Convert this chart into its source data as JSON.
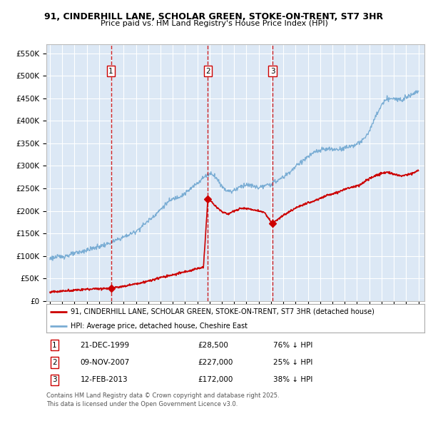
{
  "title1": "91, CINDERHILL LANE, SCHOLAR GREEN, STOKE-ON-TRENT, ST7 3HR",
  "title2": "Price paid vs. HM Land Registry's House Price Index (HPI)",
  "ylim": [
    0,
    570000
  ],
  "yticks": [
    0,
    50000,
    100000,
    150000,
    200000,
    250000,
    300000,
    350000,
    400000,
    450000,
    500000,
    550000
  ],
  "ytick_labels": [
    "£0",
    "£50K",
    "£100K",
    "£150K",
    "£200K",
    "£250K",
    "£300K",
    "£350K",
    "£400K",
    "£450K",
    "£500K",
    "£550K"
  ],
  "xlim_start": 1994.7,
  "xlim_end": 2025.5,
  "transactions": [
    {
      "num": 1,
      "date": "21-DEC-1999",
      "year": 1999.97,
      "price": 28500,
      "price_str": "£28,500",
      "pct": "76%",
      "dir": "↓"
    },
    {
      "num": 2,
      "date": "09-NOV-2007",
      "year": 2007.86,
      "price": 227000,
      "price_str": "£227,000",
      "pct": "25%",
      "dir": "↓"
    },
    {
      "num": 3,
      "date": "12-FEB-2013",
      "year": 2013.12,
      "price": 172000,
      "price_str": "£172,000",
      "pct": "38%",
      "dir": "↓"
    }
  ],
  "legend_line1": "91, CINDERHILL LANE, SCHOLAR GREEN, STOKE-ON-TRENT, ST7 3HR (detached house)",
  "legend_line2": "HPI: Average price, detached house, Cheshire East",
  "footer1": "Contains HM Land Registry data © Crown copyright and database right 2025.",
  "footer2": "This data is licensed under the Open Government Licence v3.0.",
  "plot_bg": "#dce8f5",
  "red_color": "#cc0000",
  "blue_color": "#7aadd4",
  "grid_color": "#ffffff",
  "hpi_years": [
    1995.0,
    1995.25,
    1995.5,
    1995.75,
    1996.0,
    1996.25,
    1996.5,
    1996.75,
    1997.0,
    1997.25,
    1997.5,
    1997.75,
    1998.0,
    1998.25,
    1998.5,
    1998.75,
    1999.0,
    1999.25,
    1999.5,
    1999.75,
    2000.0,
    2000.25,
    2000.5,
    2000.75,
    2001.0,
    2001.25,
    2001.5,
    2001.75,
    2002.0,
    2002.25,
    2002.5,
    2002.75,
    2003.0,
    2003.25,
    2003.5,
    2003.75,
    2004.0,
    2004.25,
    2004.5,
    2004.75,
    2005.0,
    2005.25,
    2005.5,
    2005.75,
    2006.0,
    2006.25,
    2006.5,
    2006.75,
    2007.0,
    2007.25,
    2007.5,
    2007.75,
    2008.0,
    2008.25,
    2008.5,
    2008.75,
    2009.0,
    2009.25,
    2009.5,
    2009.75,
    2010.0,
    2010.25,
    2010.5,
    2010.75,
    2011.0,
    2011.25,
    2011.5,
    2011.75,
    2012.0,
    2012.25,
    2012.5,
    2012.75,
    2013.0,
    2013.25,
    2013.5,
    2013.75,
    2014.0,
    2014.25,
    2014.5,
    2014.75,
    2015.0,
    2015.25,
    2015.5,
    2015.75,
    2016.0,
    2016.25,
    2016.5,
    2016.75,
    2017.0,
    2017.25,
    2017.5,
    2017.75,
    2018.0,
    2018.25,
    2018.5,
    2018.75,
    2019.0,
    2019.25,
    2019.5,
    2019.75,
    2020.0,
    2020.25,
    2020.5,
    2020.75,
    2021.0,
    2021.25,
    2021.5,
    2021.75,
    2022.0,
    2022.25,
    2022.5,
    2022.75,
    2023.0,
    2023.25,
    2023.5,
    2023.75,
    2024.0,
    2024.25,
    2024.5,
    2024.75,
    2025.0
  ],
  "hpi_values": [
    95000,
    96000,
    97000,
    98000,
    99000,
    100000,
    101500,
    103000,
    105000,
    107000,
    109000,
    111000,
    113000,
    115000,
    117000,
    119000,
    121000,
    123000,
    125000,
    127000,
    130000,
    133000,
    136000,
    139000,
    142000,
    145000,
    148000,
    151000,
    155000,
    160000,
    166000,
    172000,
    178000,
    184000,
    190000,
    196000,
    203000,
    210000,
    217000,
    222000,
    226000,
    229000,
    232000,
    235000,
    239000,
    244000,
    250000,
    256000,
    262000,
    268000,
    274000,
    279000,
    283000,
    282000,
    275000,
    265000,
    255000,
    248000,
    245000,
    243000,
    246000,
    250000,
    254000,
    257000,
    258000,
    257000,
    255000,
    253000,
    252000,
    253000,
    255000,
    257000,
    260000,
    263000,
    267000,
    271000,
    275000,
    280000,
    286000,
    292000,
    298000,
    304000,
    310000,
    315000,
    320000,
    325000,
    329000,
    332000,
    334000,
    336000,
    337000,
    337000,
    336000,
    336000,
    337000,
    338000,
    340000,
    342000,
    344000,
    346000,
    348000,
    352000,
    358000,
    366000,
    378000,
    392000,
    408000,
    422000,
    435000,
    443000,
    448000,
    450000,
    448000,
    447000,
    448000,
    450000,
    453000,
    456000,
    460000,
    463000,
    466000
  ],
  "prop_years": [
    1995.0,
    1995.5,
    1996.0,
    1996.5,
    1997.0,
    1997.5,
    1998.0,
    1998.5,
    1999.0,
    1999.5,
    1999.97,
    2000.3,
    2001.0,
    2002.0,
    2003.0,
    2004.0,
    2005.0,
    2006.0,
    2006.5,
    2007.0,
    2007.5,
    2007.86,
    2007.88,
    2008.1,
    2008.5,
    2009.0,
    2009.5,
    2010.0,
    2010.5,
    2011.0,
    2011.5,
    2012.0,
    2012.5,
    2013.0,
    2013.12,
    2013.5,
    2014.0,
    2014.5,
    2015.0,
    2015.5,
    2016.0,
    2016.5,
    2017.0,
    2017.5,
    2018.0,
    2018.5,
    2019.0,
    2019.5,
    2020.0,
    2020.5,
    2021.0,
    2021.5,
    2022.0,
    2022.5,
    2023.0,
    2023.5,
    2024.0,
    2024.5,
    2025.0
  ],
  "prop_values": [
    20000,
    21000,
    22000,
    23000,
    24000,
    25000,
    26000,
    27000,
    27500,
    28000,
    28500,
    30000,
    33000,
    38000,
    44000,
    52000,
    58000,
    65000,
    68000,
    72000,
    75000,
    227000,
    226000,
    222000,
    210000,
    198000,
    193000,
    200000,
    205000,
    205000,
    203000,
    200000,
    196000,
    175000,
    172000,
    180000,
    190000,
    198000,
    206000,
    212000,
    218000,
    222000,
    228000,
    234000,
    238000,
    242000,
    248000,
    252000,
    256000,
    262000,
    272000,
    278000,
    284000,
    286000,
    282000,
    278000,
    280000,
    283000,
    290000
  ]
}
